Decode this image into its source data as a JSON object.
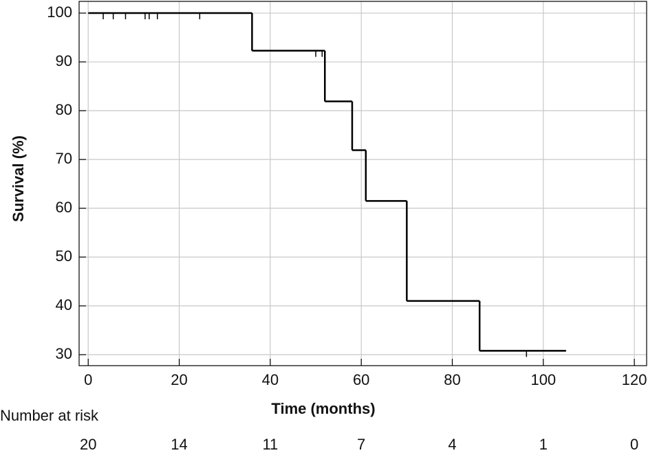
{
  "chart_data": {
    "type": "step",
    "y_label": "Survival (%)",
    "x_label": "Time (months)",
    "x": [
      0,
      36,
      52,
      58,
      61,
      70,
      86,
      105
    ],
    "values": [
      100,
      92.3,
      81.9,
      71.9,
      61.5,
      41.0,
      30.8,
      30.8
    ],
    "color": "#000000",
    "censored_x": [
      3.3,
      5.5,
      8.2,
      12.5,
      13.4,
      15.2,
      24.5,
      50,
      51.4,
      96.3
    ],
    "censored_y": [
      100,
      100,
      100,
      100,
      100,
      100,
      100,
      92.3,
      92.3,
      30.8
    ],
    "xlim": [
      -2,
      122.7
    ],
    "ylim": [
      27.75,
      102.4
    ],
    "xticks": [
      0,
      20,
      40,
      60,
      80,
      100,
      120
    ],
    "yticks": [
      30,
      40,
      50,
      60,
      70,
      80,
      90,
      100
    ],
    "grid": true,
    "risk_title": "Number at risk",
    "risk_x": [
      0,
      20,
      40,
      60,
      80,
      100,
      120
    ],
    "risk_values": [
      20,
      14,
      11,
      7,
      4,
      1,
      0
    ]
  }
}
